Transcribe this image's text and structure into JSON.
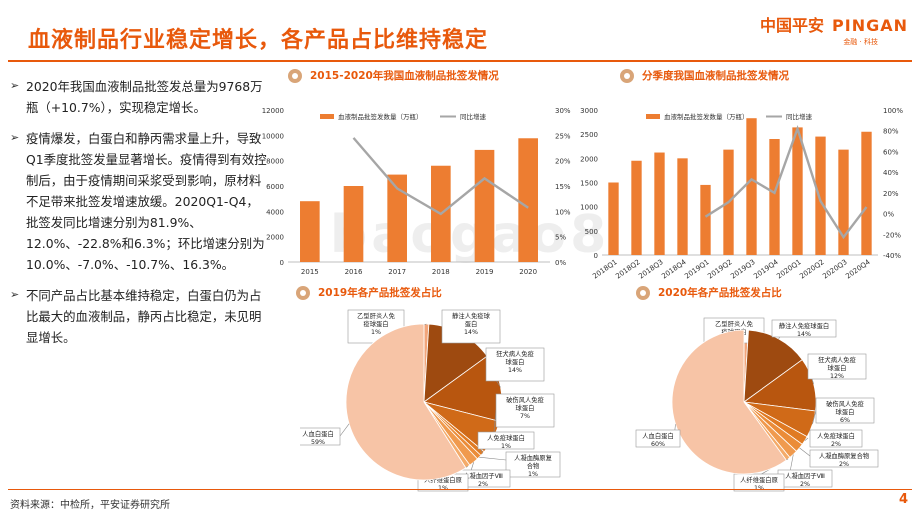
{
  "header": {
    "title": "血液制品行业稳定增长，各产品占比维持稳定",
    "logo_cn": "中国平安",
    "logo_en": "PINGAN",
    "logo_sub": "金融 · 科技"
  },
  "bullets": [
    "2020年我国血液制品批签发总量为9768万瓶（+10.7%），实现稳定增长。",
    "疫情爆发，白蛋白和静丙需求量上升，导致Q1季度批签发量显著增长。疫情得到有效控制后，由于疫情期间采浆受到影响，原材料不足带来批签发增速放缓。2020Q1-Q4，批签发同比增速分别为81.9%、12.0%、-22.8%和6.3%；环比增速分别为10.0%、-7.0%、-10.7%、16.3%。",
    "不同产品占比基本维持稳定，白蛋白仍为占比最大的血液制品，静丙占比稳定，未见明显增长。"
  ],
  "footer": {
    "source": "资料来源：中检所，平安证券研究所",
    "page": "4"
  },
  "watermark": "baogao8",
  "colors": {
    "bar": "#ED7D31",
    "line": "#A6A6A6",
    "accent": "#E8590C"
  },
  "chart_data": [
    {
      "type": "bar",
      "title": "2015-2020年我国血液制品批签发情况",
      "categories": [
        "2015",
        "2016",
        "2017",
        "2018",
        "2019",
        "2020"
      ],
      "series": [
        {
          "name": "血液制品批签发数量（万瓶）",
          "axis": "left",
          "values": [
            4800,
            6000,
            6900,
            7600,
            8850,
            9768
          ]
        },
        {
          "name": "同比增速",
          "axis": "right",
          "type": "line",
          "values": [
            null,
            24.5,
            14.5,
            9.5,
            16.5,
            10.7
          ]
        }
      ],
      "ylim_left": [
        0,
        12000
      ],
      "yticks_left": [
        "0",
        "2000",
        "4000",
        "6000",
        "8000",
        "10000",
        "12000"
      ],
      "ylim_right": [
        0,
        30
      ],
      "yticks_right": [
        "0%",
        "5%",
        "10%",
        "15%",
        "20%",
        "25%",
        "30%"
      ],
      "legend": "top"
    },
    {
      "type": "bar",
      "title": "分季度我国血液制品批签发情况",
      "categories": [
        "2018Q1",
        "2018Q2",
        "2018Q3",
        "2018Q4",
        "2019Q1",
        "2019Q2",
        "2019Q3",
        "2019Q4",
        "2020Q1",
        "2020Q2",
        "2020Q3",
        "2020Q4"
      ],
      "series": [
        {
          "name": "血液制品批签发数量（万瓶）",
          "axis": "left",
          "values": [
            1500,
            1950,
            2120,
            2000,
            1450,
            2180,
            2830,
            2400,
            2640,
            2450,
            2180,
            2550
          ]
        },
        {
          "name": "同比增速",
          "axis": "right",
          "type": "line",
          "values": [
            null,
            null,
            null,
            null,
            -3,
            11,
            33,
            20,
            81.9,
            12.0,
            -22.8,
            6.3
          ]
        }
      ],
      "ylim_left": [
        0,
        3000
      ],
      "yticks_left": [
        "0",
        "500",
        "1000",
        "1500",
        "2000",
        "2500",
        "3000"
      ],
      "ylim_right": [
        -40,
        100
      ],
      "yticks_right": [
        "-40%",
        "-20%",
        "0%",
        "20%",
        "40%",
        "60%",
        "80%",
        "100%"
      ],
      "legend": "top"
    },
    {
      "type": "pie",
      "title": "2019年各产品批签发占比",
      "slices": [
        {
          "label": "乙型肝炎人免疫球蛋白",
          "value": 1,
          "pct": "1%",
          "color": "#F2A57A"
        },
        {
          "label": "静注人免疫球蛋白",
          "value": 14,
          "pct": "14%",
          "color": "#9E4A10"
        },
        {
          "label": "狂犬病人免疫球蛋白",
          "value": 14,
          "pct": "14%",
          "color": "#B8560F"
        },
        {
          "label": "破伤风人免疫球蛋白",
          "value": 7,
          "pct": "7%",
          "color": "#D06A18"
        },
        {
          "label": "人免疫球蛋白",
          "value": 1,
          "pct": "1%",
          "color": "#E07A22"
        },
        {
          "label": "人凝血酶原复合物",
          "value": 1,
          "pct": "1%",
          "color": "#EB8C38"
        },
        {
          "label": "人凝血因子Ⅷ",
          "value": 2,
          "pct": "2%",
          "color": "#F09A4E"
        },
        {
          "label": "人纤维蛋白原",
          "value": 1,
          "pct": "1%",
          "color": "#F4AB6A"
        },
        {
          "label": "人血白蛋白",
          "value": 59,
          "pct": "59%",
          "color": "#F7C4A6"
        }
      ]
    },
    {
      "type": "pie",
      "title": "2020年各产品批签发占比",
      "slices": [
        {
          "label": "乙型肝炎人免疫球蛋白",
          "value": 1,
          "pct": "1%",
          "color": "#F2A57A"
        },
        {
          "label": "静注人免疫球蛋白",
          "value": 14,
          "pct": "14%",
          "color": "#9E4A10"
        },
        {
          "label": "狂犬病人免疫球蛋白",
          "value": 12,
          "pct": "12%",
          "color": "#B8560F"
        },
        {
          "label": "破伤风人免疫球蛋白",
          "value": 6,
          "pct": "6%",
          "color": "#D06A18"
        },
        {
          "label": "人免疫球蛋白",
          "value": 2,
          "pct": "2%",
          "color": "#E07A22"
        },
        {
          "label": "人凝血酶原复合物",
          "value": 2,
          "pct": "2%",
          "color": "#EB8C38"
        },
        {
          "label": "人凝血因子Ⅷ",
          "value": 2,
          "pct": "2%",
          "color": "#F09A4E"
        },
        {
          "label": "人纤维蛋白原",
          "value": 1,
          "pct": "1%",
          "color": "#F4AB6A"
        },
        {
          "label": "人血白蛋白",
          "value": 60,
          "pct": "60%",
          "color": "#F7C4A6"
        }
      ]
    }
  ]
}
